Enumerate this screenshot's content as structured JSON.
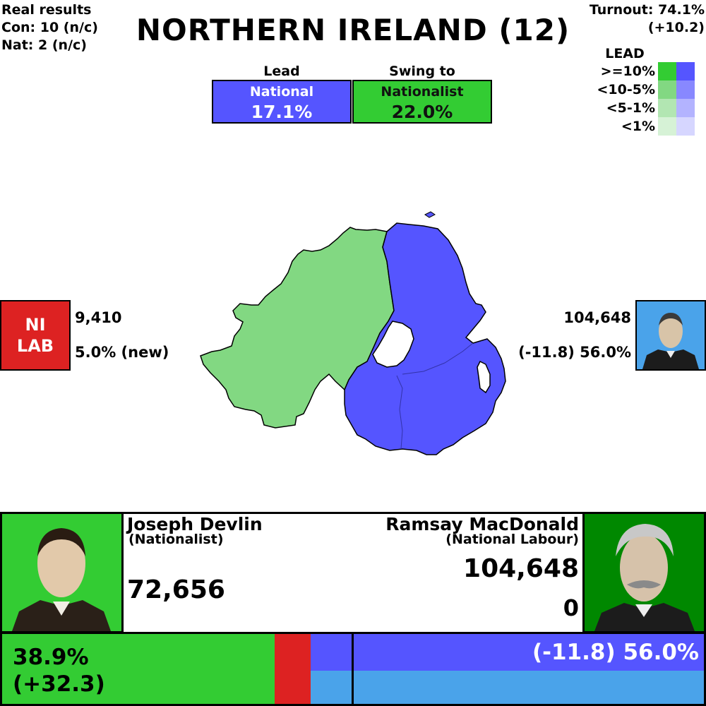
{
  "real_results": {
    "heading": "Real results",
    "con": "Con: 10 (n/c)",
    "nat": "Nat: 2 (n/c)"
  },
  "title": "NORTHERN IRELAND (12)",
  "turnout": {
    "line1": "Turnout: 74.1%",
    "line2": "(+10.2)"
  },
  "lead": {
    "header": "Lead",
    "party": "National",
    "value": "17.1%"
  },
  "swing": {
    "header": "Swing to",
    "party": "Nationalist",
    "value": "22.0%"
  },
  "legend": {
    "title": "LEAD",
    "rows": [
      ">=10%",
      "<10-5%",
      "<5-1%",
      "<1%"
    ]
  },
  "left_side": {
    "party_label_line1": "NI",
    "party_label_line2": "LAB",
    "votes": "9,410",
    "pct": "5.0% (new)"
  },
  "right_side": {
    "votes": "104,648",
    "pct": "(-11.8) 56.0%"
  },
  "candidates": {
    "left": {
      "name": "Joseph Devlin",
      "party": "(Nationalist)",
      "votes": "72,656"
    },
    "right": {
      "name": "Ramsay MacDonald",
      "party": "(National Labour)",
      "votes": "104,648",
      "seats": "0"
    }
  },
  "share_bar": {
    "left_pct": "38.9%",
    "left_change": "(+32.3)",
    "right_text": "(-11.8) 56.0%",
    "shares": {
      "nationalist": 38.9,
      "labour": 5.0,
      "national": 56.0
    }
  },
  "colors": {
    "green": "#33cc33",
    "green_light": "#82d882",
    "blue": "#5555ff",
    "light_blue": "#4aa3ea",
    "red": "#dd2222",
    "dark_green": "#008800",
    "border": "#000000"
  }
}
